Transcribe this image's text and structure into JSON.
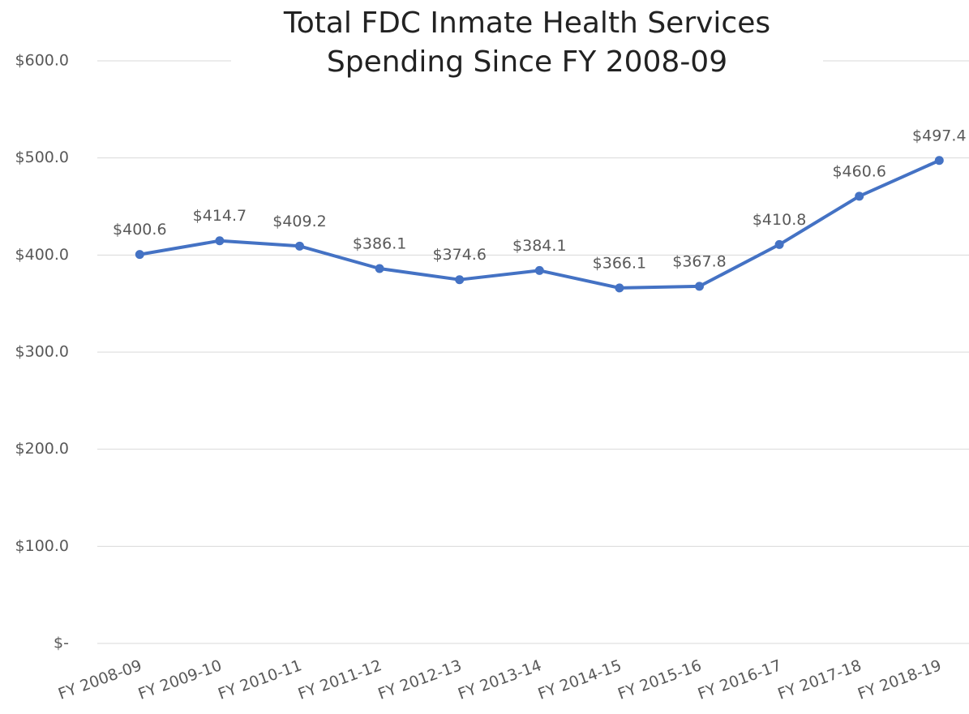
{
  "chart_data": {
    "type": "line",
    "title": [
      "Total FDC Inmate Health Services",
      "Spending Since FY 2008-09"
    ],
    "categories": [
      "FY 2008-09",
      "FY 2009-10",
      "FY 2010-11",
      "FY 2011-12",
      "FY 2012-13",
      "FY 2013-14",
      "FY 2014-15",
      "FY 2015-16",
      "FY 2016-17",
      "FY 2017-18",
      "FY 2018-19"
    ],
    "series": [
      {
        "name": "Total FDC Inmate Health Services Spending",
        "color": "#4472c4",
        "values": [
          400.6,
          414.7,
          409.2,
          386.1,
          374.6,
          384.1,
          366.1,
          367.8,
          410.8,
          460.6,
          497.4
        ],
        "value_labels": [
          "$400.6",
          "$414.7",
          "$409.2",
          "$386.1",
          "$374.6",
          "$384.1",
          "$366.1",
          "$367.8",
          "$410.8",
          "$460.6",
          "$497.4"
        ]
      }
    ],
    "ylim": [
      0,
      600
    ],
    "yticks": [
      {
        "value": 0,
        "label": "$-"
      },
      {
        "value": 100,
        "label": "$100.0"
      },
      {
        "value": 200,
        "label": "$200.0"
      },
      {
        "value": 300,
        "label": "$300.0"
      },
      {
        "value": 400,
        "label": "$400.0"
      },
      {
        "value": 500,
        "label": "$500.0"
      },
      {
        "value": 600,
        "label": "$600.0"
      }
    ],
    "grid": true
  }
}
